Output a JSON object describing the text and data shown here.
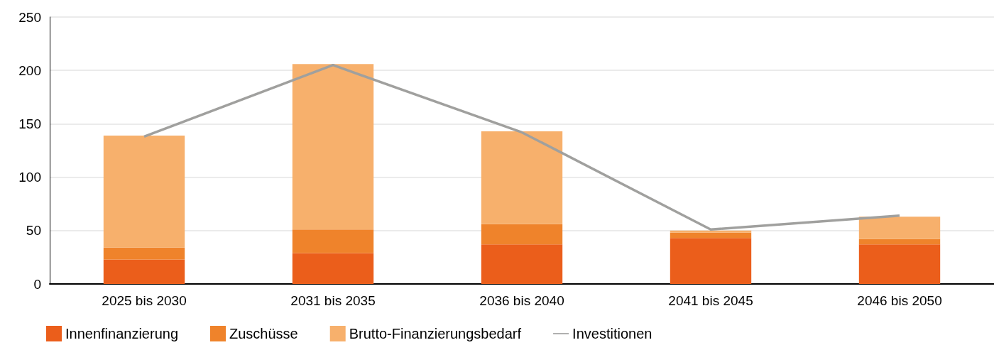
{
  "chart_data": {
    "type": "bar",
    "stacked": true,
    "categories": [
      "2025 bis 2030",
      "2031 bis 2035",
      "2036 bis 2040",
      "2041 bis 2045",
      "2046 bis 2050"
    ],
    "series": [
      {
        "name": "Innenfinanzierung",
        "color": "#eb5e1b",
        "values": [
          23,
          29,
          37,
          43,
          37
        ]
      },
      {
        "name": "Zuschüsse",
        "color": "#ef832b",
        "values": [
          11,
          22,
          19,
          5,
          5
        ]
      },
      {
        "name": "Brutto-Finanzierungsbedarf",
        "color": "#f7b06c",
        "values": [
          105,
          155,
          87,
          2,
          21
        ]
      },
      {
        "name": "Investitionen",
        "type": "line",
        "color": "#a0a09e",
        "values": [
          138,
          205,
          142,
          51,
          64
        ]
      }
    ],
    "ylim": [
      0,
      250
    ],
    "yticks": [
      0,
      50,
      100,
      150,
      200,
      250
    ],
    "grid": "y",
    "legend": "bottom",
    "marker": "none"
  }
}
